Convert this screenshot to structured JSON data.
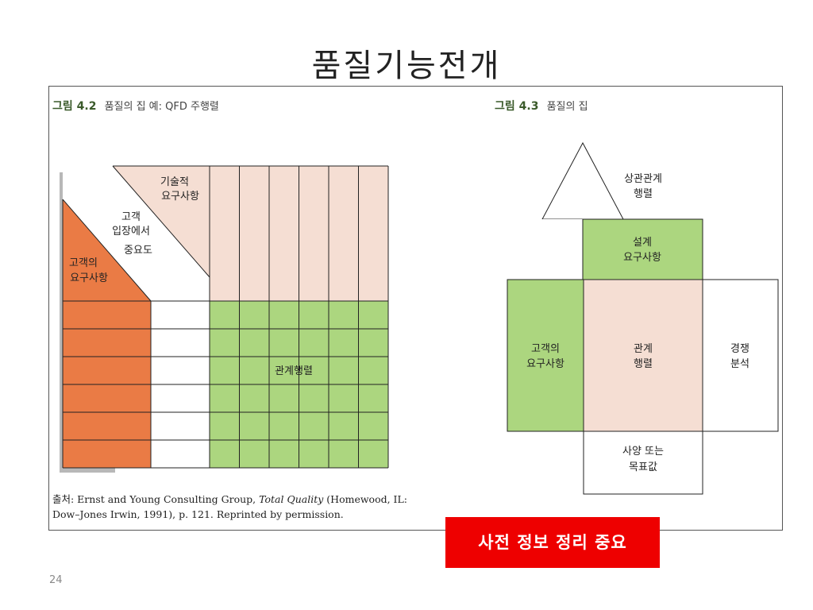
{
  "slide": {
    "title": "품질기능전개",
    "page_number": "24",
    "highlight_badge": "사전 정보 정리 중요"
  },
  "figure_left": {
    "number": "그림 4.2",
    "caption": "품질의 집 예: QFD 주행렬",
    "labels": {
      "technical_requirements": [
        "기술적",
        "요구사항"
      ],
      "customer_importance": [
        "고객",
        "입장에서",
        "중요도"
      ],
      "customer_requirements": [
        "고객의",
        "요구사항"
      ],
      "relationship_matrix": "관계행렬"
    },
    "source": {
      "prefix": "출처: Ernst and Young Consulting Group,",
      "book": "Total Quality",
      "suffix": "(Homewood, IL:",
      "line2": "Dow–Jones Irwin, 1991), p. 121. Reprinted by permission."
    }
  },
  "figure_right": {
    "number": "그림 4.3",
    "caption": "품질의 집",
    "labels": {
      "roof": [
        "상관관계",
        "행렬"
      ],
      "design_requirements": [
        "설계",
        "요구사항"
      ],
      "customer_requirements": [
        "고객의",
        "요구사항"
      ],
      "relationship_matrix": [
        "관계",
        "행렬"
      ],
      "competitive_analysis": [
        "경쟁",
        "분석"
      ],
      "specifications": [
        "사양 또는",
        "목표값"
      ]
    }
  },
  "colors": {
    "orange": "#ea7b45",
    "green": "#acd67f",
    "pink": "#f5ded3",
    "badge_red": "#ee0000"
  }
}
